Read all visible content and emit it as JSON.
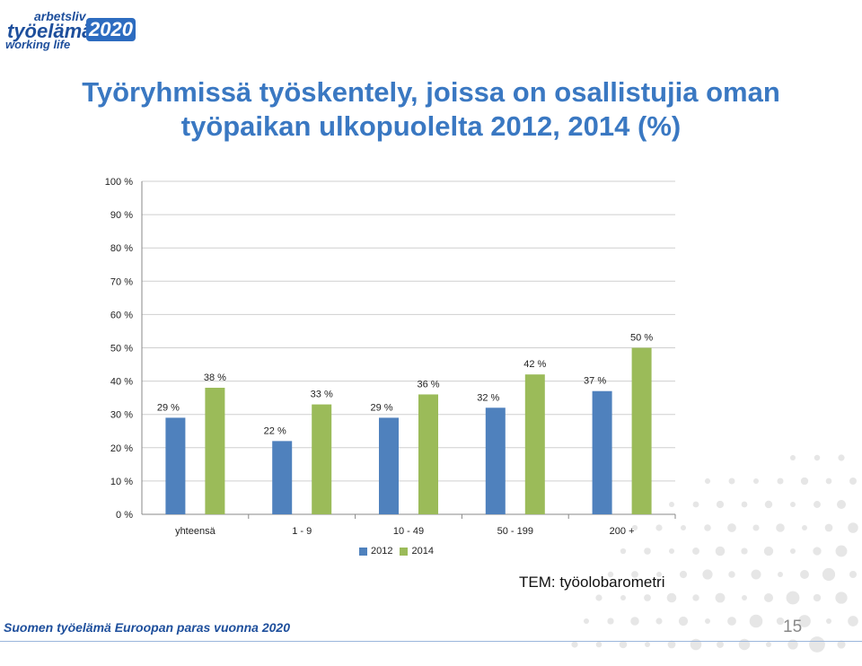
{
  "logo": {
    "line1": "arbetsliv",
    "line2": "työelämä",
    "year": "2020",
    "line3": "working life"
  },
  "title": {
    "line1": "Työryhmissä työskentely, joissa on osallistujia oman",
    "line2": "työpaikan ulkopuolelta 2012, 2014 (%)"
  },
  "colors": {
    "series_2012": "#4f81bd",
    "series_2014": "#9bbb59",
    "title": "#3a78c2"
  },
  "chart_data": {
    "type": "bar",
    "title": "Työryhmissä työskentely, joissa on osallistujia oman työpaikan ulkopuolelta 2012, 2014 (%)",
    "categories": [
      "yhteensä",
      "1 - 9",
      "10 - 49",
      "50 - 199",
      "200 +"
    ],
    "series": [
      {
        "name": "2012",
        "values": [
          29,
          22,
          29,
          32,
          37
        ],
        "labels": [
          "29 %",
          "22 %",
          "29 %",
          "32 %",
          "37 %"
        ]
      },
      {
        "name": "2014",
        "values": [
          38,
          33,
          36,
          42,
          50
        ],
        "labels": [
          "38 %",
          "33 %",
          "36 %",
          "42 %",
          "50 %"
        ]
      }
    ],
    "ylim": [
      0,
      100
    ],
    "yticks": [
      "0 %",
      "10 %",
      "20 %",
      "30 %",
      "40 %",
      "50 %",
      "60 %",
      "70 %",
      "80 %",
      "90 %",
      "100 %"
    ],
    "grid": true,
    "legend": "bottom"
  },
  "source": "TEM: työolobarometri",
  "footer": "Suomen työelämä Euroopan paras vuonna 2020",
  "page_number": "15"
}
